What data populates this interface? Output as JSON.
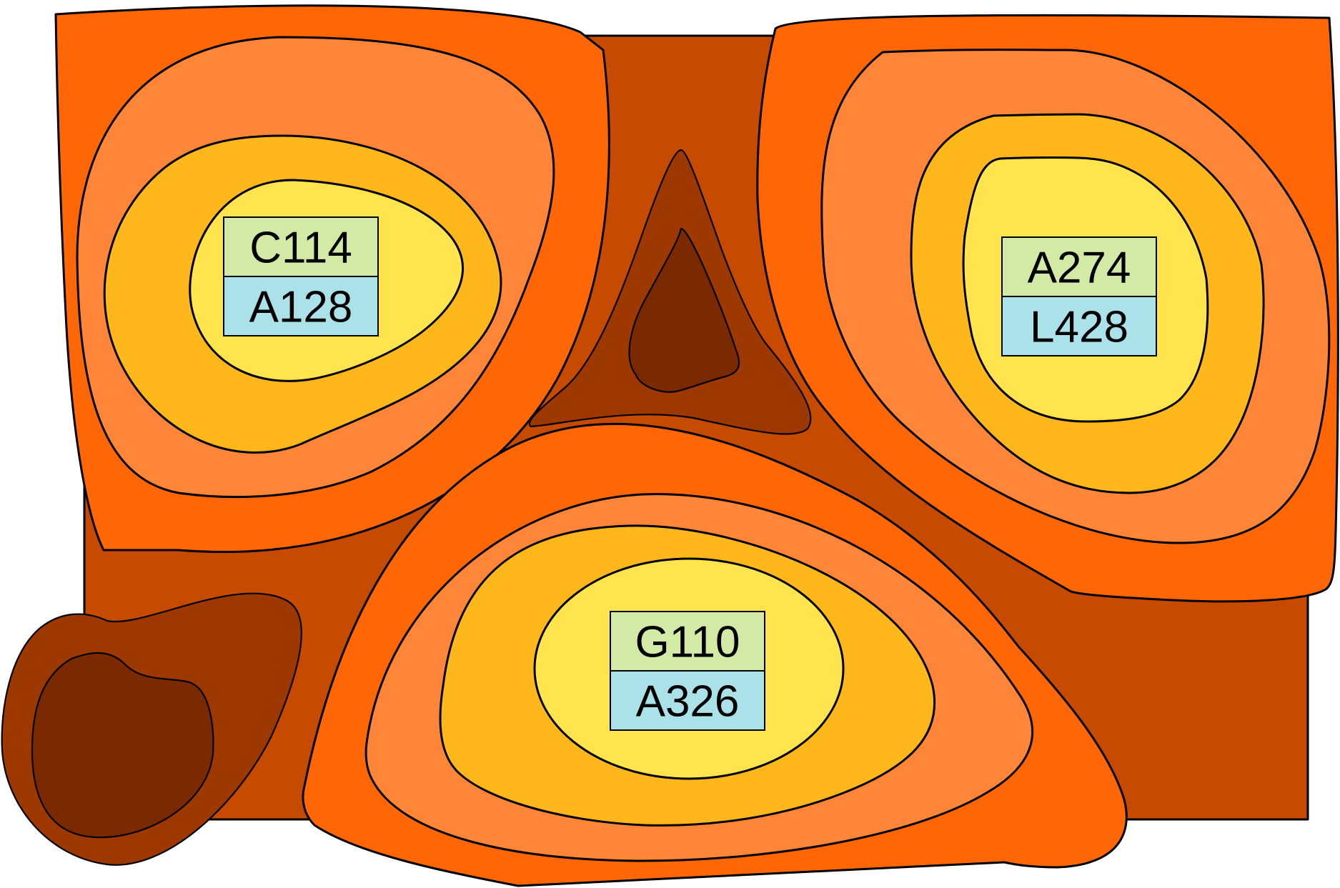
{
  "colors": {
    "background_plate": "#c64a00",
    "outer_zone": "#ff6606",
    "middle_zone": "#ff8638",
    "inner_zone": "#ffb71c",
    "core_zone": "#ffe44d",
    "trough_outer": "#9c3800",
    "trough_inner": "#7b2900",
    "label_top_fill": "#d3eaa6",
    "label_bottom_fill": "#abe2ea"
  },
  "peaks": [
    {
      "id": "upper-left",
      "top_label": "C114",
      "bottom_label": "A128"
    },
    {
      "id": "upper-right",
      "top_label": "A274",
      "bottom_label": "L428"
    },
    {
      "id": "bottom-center",
      "top_label": "G110",
      "bottom_label": "A326"
    }
  ]
}
